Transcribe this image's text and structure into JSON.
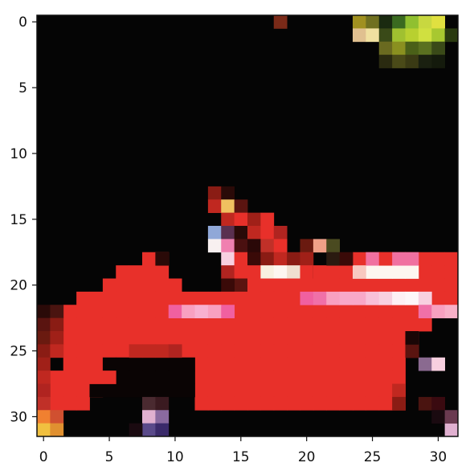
{
  "image": {
    "description_free": true,
    "grid_size": 32,
    "x_ticks": [
      "0",
      "5",
      "10",
      "15",
      "20",
      "25",
      "30"
    ],
    "y_ticks": [
      "0",
      "5",
      "10",
      "15",
      "20",
      "25",
      "30"
    ],
    "colors": {
      "background": "#050505",
      "car_red": "#e8302a",
      "dark_red": "#8a1c14",
      "maroon": "#3a0a08",
      "pink": "#f060a0",
      "light_pink": "#f8b8d0",
      "white": "#fdf6f0",
      "yellow_green": "#b8d030",
      "olive": "#6a6a20",
      "orange": "#f8a030",
      "purple": "#6a4a8a",
      "light_blue": "#a0b8e0"
    }
  }
}
